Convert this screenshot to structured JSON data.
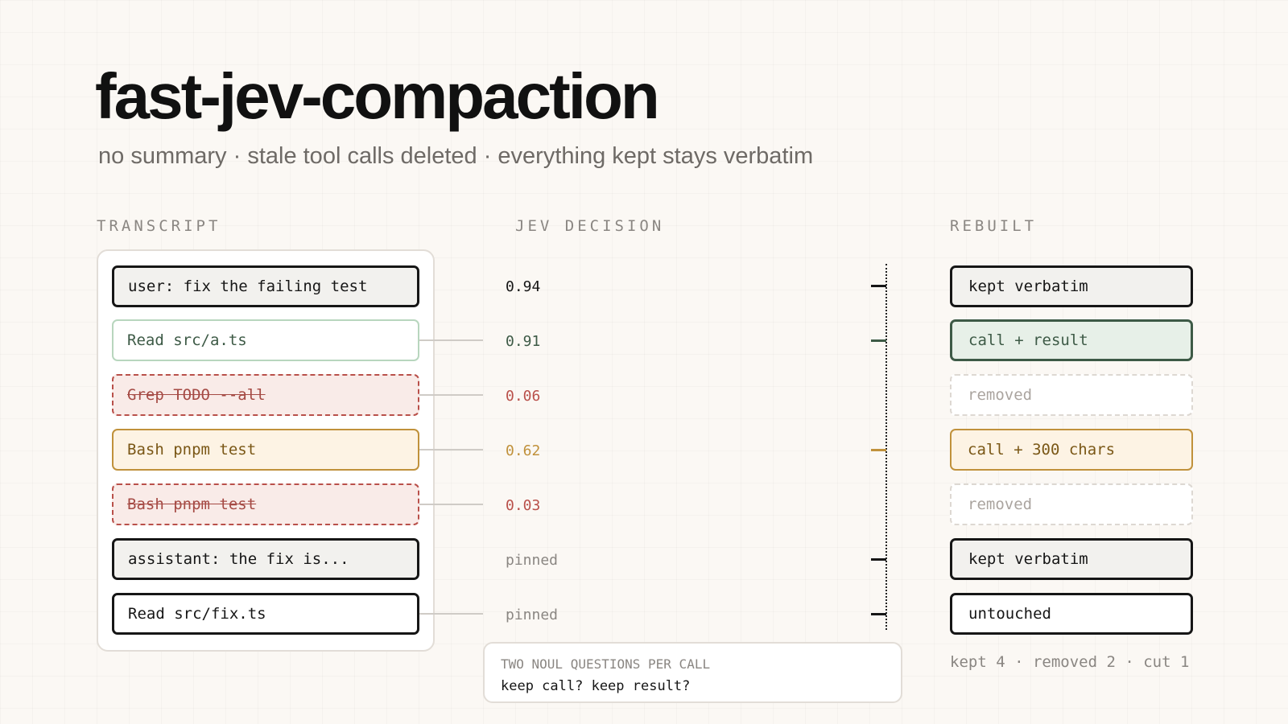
{
  "title": "fast-jev-compaction",
  "subtitle": "no summary · stale tool calls deleted · everything kept stays verbatim",
  "columns": {
    "transcript": "TRANSCRIPT",
    "decision": "JEV DECISION",
    "rebuilt": "REBUILT"
  },
  "rows": [
    {
      "item": "user: fix the failing test",
      "score": "0.94",
      "result": "kept verbatim",
      "status": "kept"
    },
    {
      "item": "Read src/a.ts",
      "score": "0.91",
      "result": "call + result",
      "status": "kept"
    },
    {
      "item": "Grep TODO --all",
      "score": "0.06",
      "result": "removed",
      "status": "removed"
    },
    {
      "item": "Bash pnpm test",
      "score": "0.62",
      "result": "call + 300 chars",
      "status": "cut"
    },
    {
      "item": "Bash pnpm test",
      "score": "0.03",
      "result": "removed",
      "status": "removed"
    },
    {
      "item": "assistant: the fix is...",
      "score": "pinned",
      "result": "kept verbatim",
      "status": "pinned"
    },
    {
      "item": "Read src/fix.ts",
      "score": "pinned",
      "result": "untouched",
      "status": "pinned"
    }
  ],
  "note": {
    "heading": "TWO NOUL QUESTIONS PER CALL",
    "body": "keep call? keep result?"
  },
  "stats": "kept 4 · removed 2 · cut 1",
  "colors": {
    "black": "#161616",
    "green": "#3d5a46",
    "red": "#b9504a",
    "gold": "#c0913b",
    "muted": "#8a8682"
  }
}
